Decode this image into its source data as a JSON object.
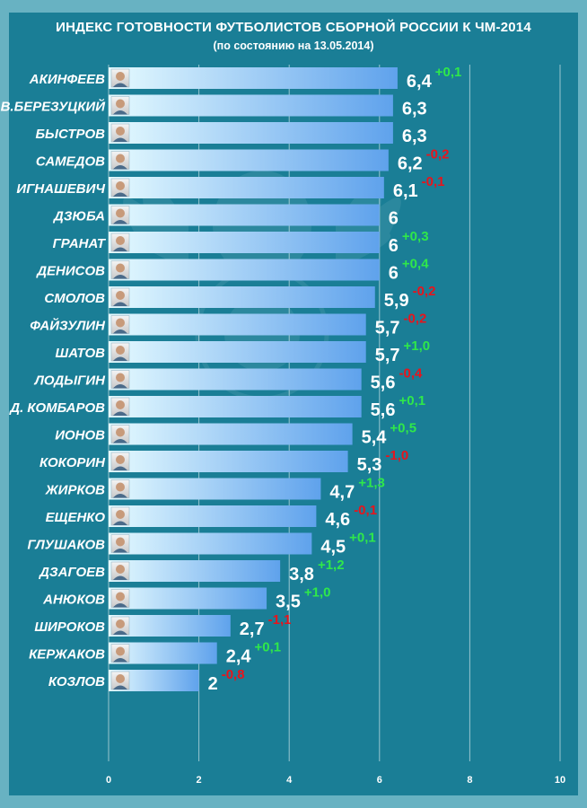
{
  "chart_data": {
    "type": "bar",
    "orientation": "horizontal",
    "title": "ИНДЕКС ГОТОВНОСТИ ФУТБОЛИСТОВ СБОРНОЙ РОССИИ К ЧМ-2014",
    "subtitle": "(по состоянию на 13.05.2014)",
    "xlim": [
      0,
      10
    ],
    "xticks": [
      "0",
      "2",
      "4",
      "6",
      "8",
      "10"
    ],
    "grid": true,
    "categories": [
      "АКИНФЕЕВ",
      "В.БЕРЕЗУЦКИЙ",
      "БЫСТРОВ",
      "САМЕДОВ",
      "ИГНАШЕВИЧ",
      "ДЗЮБА",
      "ГРАНАТ",
      "ДЕНИСОВ",
      "СМОЛОВ",
      "ФАЙЗУЛИН",
      "ШАТОВ",
      "ЛОДЫГИН",
      "Д. КОМБАРОВ",
      "ИОНОВ",
      "КОКОРИН",
      "ЖИРКОВ",
      "ЕЩЕНКО",
      "ГЛУШАКОВ",
      "ДЗАГОЕВ",
      "АНЮКОВ",
      "ШИРОКОВ",
      "КЕРЖАКОВ",
      "КОЗЛОВ"
    ],
    "values": [
      6.4,
      6.3,
      6.3,
      6.2,
      6.1,
      6,
      6,
      6,
      5.9,
      5.7,
      5.7,
      5.6,
      5.6,
      5.4,
      5.3,
      4.7,
      4.6,
      4.5,
      3.8,
      3.5,
      2.7,
      2.4,
      2
    ],
    "value_labels": [
      "6,4",
      "6,3",
      "6,3",
      "6,2",
      "6,1",
      "6",
      "6",
      "6",
      "5,9",
      "5,7",
      "5,7",
      "5,6",
      "5,6",
      "5,4",
      "5,3",
      "4,7",
      "4,6",
      "4,5",
      "3,8",
      "3,5",
      "2,7",
      "2,4",
      "2"
    ],
    "change_labels": [
      "+0,1",
      "",
      "",
      "-0,2",
      "-0,1",
      "",
      "+0,3",
      "+0,4",
      "-0,2",
      "-0,2",
      "+1,0",
      "-0,4",
      "+0,1",
      "+0,5",
      "-1,0",
      "+1,3",
      "-0,1",
      "+0,1",
      "+1,2",
      "+1,0",
      "-1,1",
      "+0,1",
      "-0,8"
    ],
    "colors": {
      "background": "#1a7e96",
      "frame": "#68b2c2",
      "bar_start": "#e6fbff",
      "bar_end": "#5fa2ec",
      "positive": "#2fe84a",
      "negative": "#e8141c",
      "grid": "#ffffff"
    }
  }
}
